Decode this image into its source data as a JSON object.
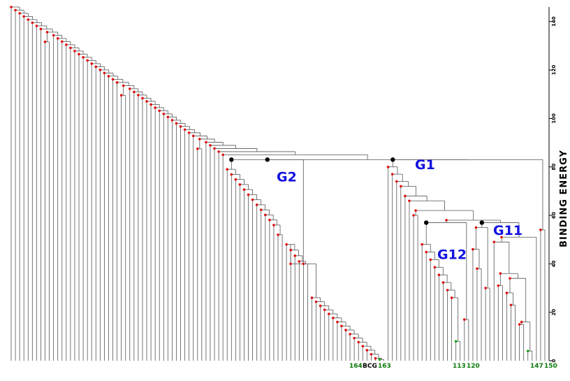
{
  "chart_data": {
    "type": "dendrogram",
    "ylabel": "BINDING ENERGY",
    "yticks": [
      0,
      20,
      40,
      60,
      80,
      100,
      120,
      140
    ],
    "ylim": [
      0,
      146
    ],
    "groups": [
      {
        "label": "G1",
        "height": 80
      },
      {
        "label": "G2",
        "height": 75
      },
      {
        "label": "G11",
        "height": 53
      },
      {
        "label": "G12",
        "height": 43
      }
    ],
    "leaf_labels": [
      {
        "text": "164",
        "color": "green"
      },
      {
        "text": "BCG",
        "color": "black"
      },
      {
        "text": "163",
        "color": "green"
      },
      {
        "text": "113",
        "color": "green"
      },
      {
        "text": "120",
        "color": "green"
      },
      {
        "text": "147",
        "color": "green"
      },
      {
        "text": "150",
        "color": "green"
      }
    ],
    "colors": {
      "branch": "#555555",
      "node_red": "#e01010",
      "node_green": "#0a9a0a",
      "node_black": "#000000",
      "group_label": "#1010e0"
    }
  }
}
